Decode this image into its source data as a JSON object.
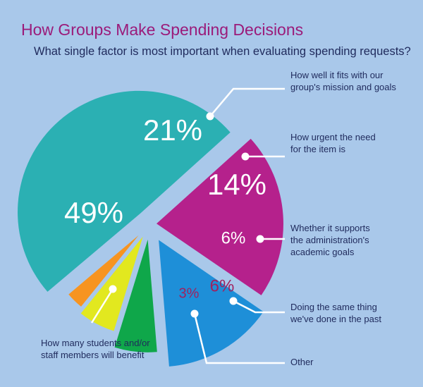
{
  "title": "How Groups Make Spending Decisions",
  "subtitle": "What single factor is most important when evaluating spending requests?",
  "colors": {
    "background": "#a9c8ea",
    "title": "#9b1b7a",
    "subtitle": "#1f2a5c",
    "callout_text": "#1f2a5c",
    "connector": "#ffffff"
  },
  "chart_data": {
    "type": "pie",
    "title": "How Groups Make Spending Decisions",
    "subtitle": "What single factor is most important when evaluating spending requests?",
    "exploded": true,
    "start_angle_deg": -42,
    "direction": "clockwise",
    "slices": [
      {
        "label": "How well it fits with our group's mission and goals",
        "value": 21,
        "display": "21%",
        "color": "#b5218c",
        "label_color": "#ffffff"
      },
      {
        "label": "How urgent the need for the item is",
        "value": 14,
        "display": "14%",
        "color": "#1e8fd8",
        "label_color": "#ffffff"
      },
      {
        "label": "Whether it supports the administration's academic goals",
        "value": 6,
        "display": "6%",
        "color": "#0fa74a",
        "label_color": "#ffffff"
      },
      {
        "label": "Doing the same thing we've done in the past",
        "value": 6,
        "display": "6%",
        "color": "#e2e81f",
        "label_color": "#a0215e"
      },
      {
        "label": "Other",
        "value": 3,
        "display": "3%",
        "color": "#f79420",
        "label_color": "#a0215e"
      },
      {
        "label": "How many students and/or staff members will benefit",
        "value": 49,
        "display": "49%",
        "color": "#2bb0b3",
        "label_color": "#ffffff"
      }
    ]
  },
  "callouts": [
    {
      "lines": [
        "How well it fits with our",
        "group's mission and goals"
      ]
    },
    {
      "lines": [
        "How urgent the need",
        "for the item is"
      ]
    },
    {
      "lines": [
        "Whether it supports",
        "the administration's",
        "academic goals"
      ]
    },
    {
      "lines": [
        "Doing the same thing",
        "we've done in the past"
      ]
    },
    {
      "lines": [
        "Other"
      ]
    },
    {
      "lines": [
        "How many students and/or",
        "staff members will benefit"
      ]
    }
  ]
}
